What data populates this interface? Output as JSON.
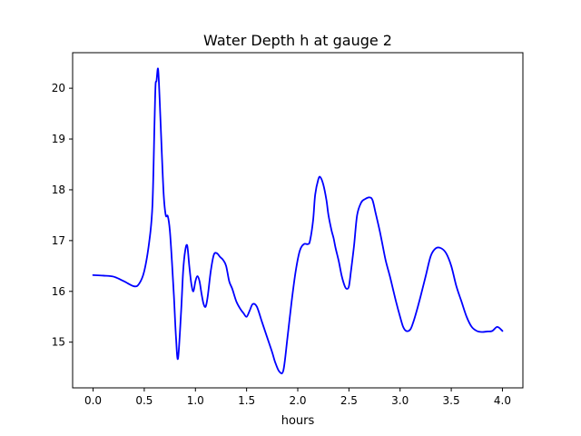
{
  "chart_data": {
    "type": "line",
    "title": "Water Depth h at gauge 2",
    "xlabel": "hours",
    "ylabel": "",
    "xlim": [
      -0.2,
      4.2
    ],
    "ylim": [
      14.1,
      20.7
    ],
    "xticks": [
      0.0,
      0.5,
      1.0,
      1.5,
      2.0,
      2.5,
      3.0,
      3.5,
      4.0
    ],
    "xtick_labels": [
      "0.0",
      "0.5",
      "1.0",
      "1.5",
      "2.0",
      "2.5",
      "3.0",
      "3.5",
      "4.0"
    ],
    "yticks": [
      15,
      16,
      17,
      18,
      19,
      20
    ],
    "ytick_labels": [
      "15",
      "16",
      "17",
      "18",
      "19",
      "20"
    ],
    "grid": false,
    "line_color": "#0000ff",
    "series": [
      {
        "x": [
          0.0,
          0.1,
          0.2,
          0.3,
          0.4,
          0.45,
          0.5,
          0.55,
          0.58,
          0.6,
          0.61,
          0.62,
          0.635,
          0.65,
          0.67,
          0.69,
          0.71,
          0.73,
          0.75,
          0.77,
          0.79,
          0.81,
          0.83,
          0.86,
          0.88,
          0.9,
          0.92,
          0.94,
          0.96,
          0.98,
          1.0,
          1.02,
          1.04,
          1.06,
          1.08,
          1.1,
          1.12,
          1.15,
          1.18,
          1.21,
          1.24,
          1.27,
          1.3,
          1.33,
          1.36,
          1.4,
          1.44,
          1.47,
          1.5,
          1.53,
          1.56,
          1.6,
          1.65,
          1.7,
          1.75,
          1.78,
          1.82,
          1.86,
          1.9,
          1.94,
          1.98,
          2.02,
          2.06,
          2.1,
          2.12,
          2.15,
          2.17,
          2.2,
          2.22,
          2.25,
          2.28,
          2.3,
          2.33,
          2.35,
          2.37,
          2.4,
          2.43,
          2.46,
          2.48,
          2.5,
          2.52,
          2.55,
          2.58,
          2.62,
          2.66,
          2.7,
          2.73,
          2.76,
          2.8,
          2.83,
          2.86,
          2.9,
          2.93,
          2.96,
          3.0,
          3.03,
          3.06,
          3.1,
          3.13,
          3.16,
          3.2,
          3.25,
          3.3,
          3.35,
          3.4,
          3.45,
          3.5,
          3.55,
          3.6,
          3.65,
          3.7,
          3.75,
          3.8,
          3.85,
          3.9,
          3.95,
          4.0
        ],
        "y": [
          16.32,
          16.31,
          16.29,
          16.2,
          16.1,
          16.15,
          16.4,
          17.0,
          17.7,
          19.3,
          20.05,
          20.15,
          20.38,
          19.8,
          18.8,
          17.9,
          17.5,
          17.48,
          17.2,
          16.6,
          15.9,
          15.1,
          14.68,
          15.6,
          16.4,
          16.8,
          16.9,
          16.5,
          16.15,
          16.0,
          16.2,
          16.3,
          16.2,
          15.95,
          15.75,
          15.7,
          15.9,
          16.4,
          16.72,
          16.75,
          16.68,
          16.62,
          16.5,
          16.2,
          16.05,
          15.8,
          15.65,
          15.57,
          15.5,
          15.62,
          15.75,
          15.7,
          15.4,
          15.1,
          14.8,
          14.6,
          14.42,
          14.45,
          15.1,
          15.8,
          16.4,
          16.8,
          16.93,
          16.93,
          17.0,
          17.4,
          17.9,
          18.2,
          18.25,
          18.1,
          17.8,
          17.5,
          17.2,
          17.05,
          16.85,
          16.6,
          16.3,
          16.1,
          16.05,
          16.1,
          16.4,
          16.9,
          17.5,
          17.75,
          17.82,
          17.85,
          17.8,
          17.55,
          17.2,
          16.9,
          16.6,
          16.3,
          16.05,
          15.8,
          15.5,
          15.3,
          15.22,
          15.25,
          15.4,
          15.6,
          15.9,
          16.3,
          16.7,
          16.85,
          16.85,
          16.75,
          16.5,
          16.1,
          15.8,
          15.5,
          15.3,
          15.22,
          15.2,
          15.21,
          15.22,
          15.3,
          15.22
        ]
      }
    ]
  }
}
